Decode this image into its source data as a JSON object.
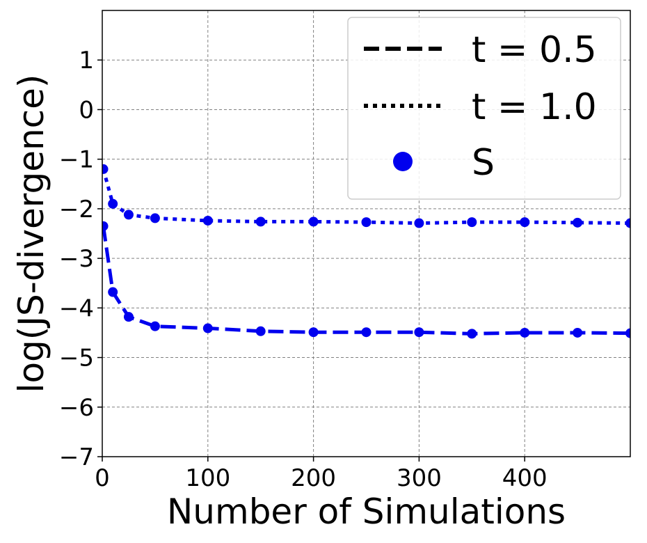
{
  "chart_data": {
    "type": "line",
    "title": "",
    "xlabel": "Number of Simulations",
    "ylabel": "log(JS-divergence)",
    "xlim": [
      0,
      500
    ],
    "ylim": [
      -7,
      2
    ],
    "xticks": [
      0,
      100,
      200,
      300,
      400
    ],
    "yticks": [
      -7,
      -6,
      -5,
      -4,
      -3,
      -2,
      -1,
      0,
      1
    ],
    "grid": true,
    "legend": "top-right",
    "color": "#0000ee",
    "x": [
      1,
      10,
      25,
      50,
      100,
      150,
      200,
      250,
      300,
      350,
      400,
      450,
      500
    ],
    "series": [
      {
        "name": "t = 0.5",
        "linestyle": "dashed",
        "values": [
          -2.35,
          -3.68,
          -4.18,
          -4.37,
          -4.41,
          -4.47,
          -4.49,
          -4.49,
          -4.49,
          -4.52,
          -4.5,
          -4.5,
          -4.51
        ]
      },
      {
        "name": "t = 1.0",
        "linestyle": "dotted",
        "values": [
          -1.2,
          -1.9,
          -2.12,
          -2.19,
          -2.24,
          -2.26,
          -2.26,
          -2.27,
          -2.29,
          -2.27,
          -2.27,
          -2.28,
          -2.29
        ]
      }
    ],
    "marker_legend": "S"
  }
}
